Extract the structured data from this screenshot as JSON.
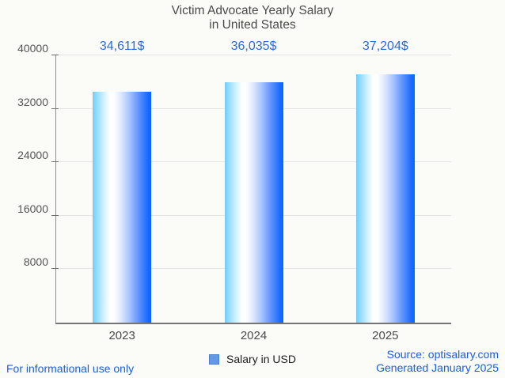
{
  "title": {
    "line1": "Victim Advocate Yearly Salary",
    "line2": "in United States"
  },
  "chart_data": {
    "type": "bar",
    "categories": [
      "2023",
      "2024",
      "2025"
    ],
    "values": [
      34611,
      36035,
      37204
    ],
    "value_labels": [
      "34,611$",
      "36,035$",
      "37,204$"
    ],
    "series_name": "Salary in USD",
    "ylim": [
      0,
      40000
    ],
    "yticks": [
      8000,
      16000,
      24000,
      32000,
      40000
    ],
    "grid": "horizontal",
    "legend_position": "bottom-center",
    "colors": {
      "bar_gradient_left": "#6fcefb",
      "bar_gradient_mid": "#ffffff",
      "bar_gradient_right": "#0c62f8",
      "value_label": "#2b6bd6",
      "footer_text": "#1c5fd9",
      "legend_swatch": "#619ae2",
      "gridline": "#e4e4e4",
      "background": "#fbfbf8"
    }
  },
  "legend": {
    "label": "Salary in USD"
  },
  "footer": {
    "left": "For informational use only",
    "source": "Source: optisalary.com",
    "generated": "Generated January 2025"
  }
}
